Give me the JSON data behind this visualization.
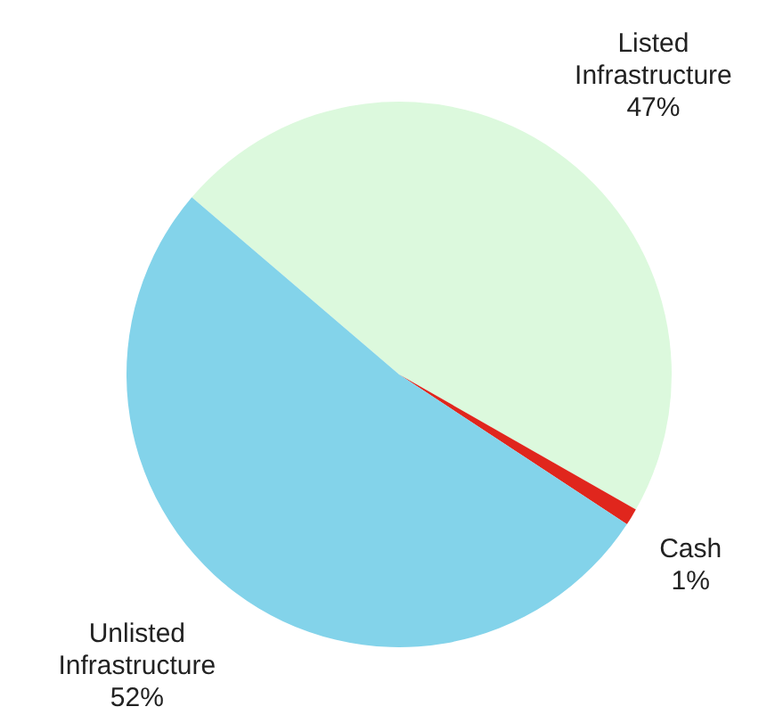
{
  "chart_data": {
    "type": "pie",
    "categories": [
      "Listed Infrastructure",
      "Cash",
      "Unlisted Infrastructure"
    ],
    "values": [
      47,
      1,
      52
    ],
    "value_labels": [
      "47%",
      "1%",
      "52%"
    ],
    "colors": [
      "#dcf9dd",
      "#e0261d",
      "#83d3ea"
    ]
  }
}
